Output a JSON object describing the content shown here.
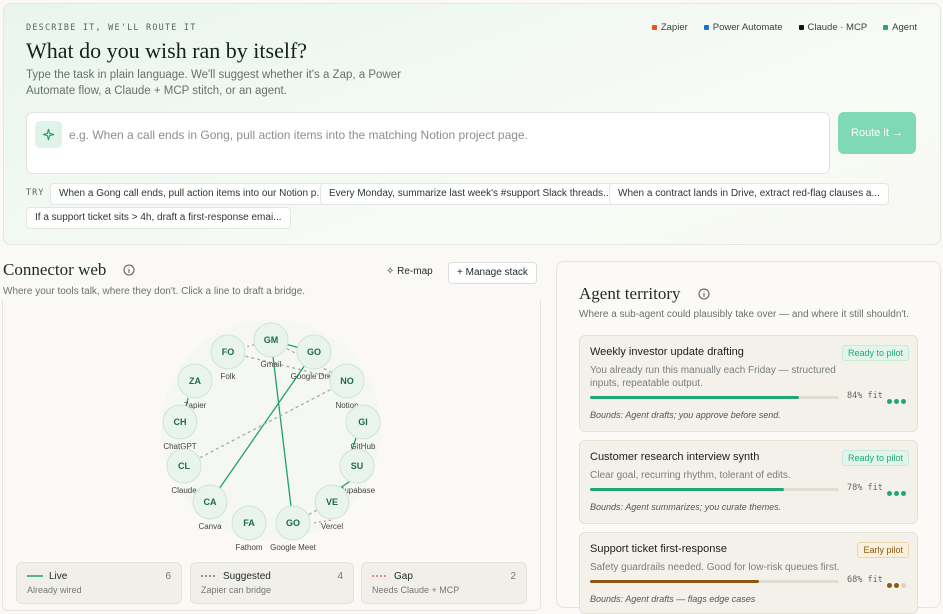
{
  "header": {
    "eyebrow": "DESCRIBE IT, WE'LL ROUTE IT",
    "title": "What do you wish ran by itself?",
    "subtitle": "Type the task in plain language. We'll suggest whether it's a Zap, a Power Automate flow, a Claude + MCP stitch, or an agent.",
    "legend": [
      "Zapier",
      "Power Automate",
      "Claude · MCP",
      "Agent"
    ]
  },
  "input": {
    "placeholder": "e.g. When a call ends in Gong, pull action items into the matching Notion project page.",
    "button": "Route it →"
  },
  "try": {
    "label": "TRY",
    "suggestions": [
      "When a Gong call ends, pull action items into our Notion p...",
      "Every Monday, summarize last week's #support Slack threads...",
      "When a contract lands in Drive, extract red-flag clauses a...",
      "If a support ticket sits > 4h, draft a first-response emai..."
    ]
  },
  "connector_web": {
    "title": "Connector web",
    "subtitle": "Where your tools talk, where they don't. Click a line to draft a bridge.",
    "actions": [
      "Re-map",
      "Manage stack"
    ],
    "nodes": [
      {
        "initials": "GM",
        "name": "Gmail"
      },
      {
        "initials": "GO",
        "name": "Google Drive"
      },
      {
        "initials": "FO",
        "name": "Folk"
      },
      {
        "initials": "NO",
        "name": "Notion"
      },
      {
        "initials": "ZA",
        "name": "Zapier"
      },
      {
        "initials": "GI",
        "name": "GitHub"
      },
      {
        "initials": "CH",
        "name": "ChatGPT"
      },
      {
        "initials": "SU",
        "name": "Supabase"
      },
      {
        "initials": "CL",
        "name": "Claude"
      },
      {
        "initials": "VE",
        "name": "Vercel"
      },
      {
        "initials": "CA",
        "name": "Canva"
      },
      {
        "initials": "FA",
        "name": "Fathom"
      },
      {
        "initials": "GO",
        "name": "Google Meet"
      }
    ],
    "legend": [
      {
        "label": "Live",
        "count": 6,
        "note": "Already wired"
      },
      {
        "label": "Suggested",
        "count": 4,
        "note": "Zapier can bridge"
      },
      {
        "label": "Gap",
        "count": 2,
        "note": "Needs Claude + MCP"
      }
    ]
  },
  "agent_territory": {
    "title": "Agent territory",
    "subtitle": "Where a sub-agent could plausibly take over — and where it still shouldn't.",
    "cards": [
      {
        "title": "Weekly investor update drafting",
        "badge": "Ready to pilot",
        "description": "You already run this manually each Friday — structured inputs, repeatable output.",
        "fit": 84,
        "fit_label": "84% fit",
        "bounds": "Bounds: Agent drafts; you approve before send."
      },
      {
        "title": "Customer research interview synth",
        "badge": "Ready to pilot",
        "description": "Clear goal, recurring rhythm, tolerant of edits.",
        "fit": 78,
        "fit_label": "78% fit",
        "bounds": "Bounds: Agent summarizes; you curate themes."
      },
      {
        "title": "Support ticket first-response",
        "badge": "Early pilot",
        "description": "Safety guardrails needed. Good for low-risk queues first.",
        "fit": 68,
        "fit_label": "68% fit",
        "bounds": "Bounds: Agent drafts — flags edge cases"
      }
    ]
  }
}
